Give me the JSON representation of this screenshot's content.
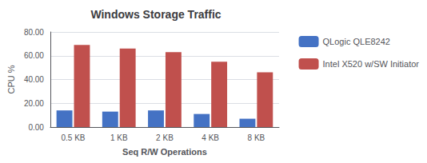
{
  "chart_data": {
    "type": "bar",
    "title": "Windows Storage Traffic",
    "xlabel": "Seq R/W Operations",
    "ylabel": "CPU %",
    "categories": [
      "0.5 KB",
      "1 KB",
      "2 KB",
      "4 KB",
      "8 KB"
    ],
    "series": [
      {
        "name": "QLogic QLE8242",
        "color": "#4472C4",
        "values": [
          14,
          13,
          14,
          11,
          7
        ]
      },
      {
        "name": "Intel X520 w/SW Initiator",
        "color": "#C0504D",
        "values": [
          69,
          66,
          63,
          55,
          46
        ]
      }
    ],
    "ylim": [
      0,
      80
    ],
    "yticks": [
      {
        "value": 0,
        "label": "0.00"
      },
      {
        "value": 20,
        "label": "20.00"
      },
      {
        "value": 40,
        "label": "40.00"
      },
      {
        "value": 60,
        "label": "60.00"
      },
      {
        "value": 80,
        "label": "80.00"
      }
    ],
    "grid": true,
    "legend": "right"
  }
}
